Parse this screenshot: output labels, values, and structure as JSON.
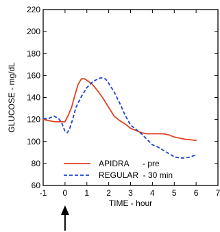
{
  "chart_data": {
    "type": "line",
    "xlabel": "TIME - hour",
    "ylabel": "GLUCOSE - mg/dL",
    "xlim": [
      -1,
      7
    ],
    "ylim": [
      60,
      220
    ],
    "x_ticks": [
      -1,
      0,
      1,
      2,
      3,
      4,
      5,
      6,
      7
    ],
    "y_ticks": [
      60,
      80,
      100,
      120,
      140,
      160,
      180,
      200,
      220
    ],
    "grid": false,
    "legend_position": "bottom-right",
    "series": [
      {
        "name": "APIDRA      - pre",
        "color": "#e0401e",
        "style": "solid",
        "points": [
          [
            -1.0,
            120
          ],
          [
            -0.75,
            119
          ],
          [
            -0.5,
            118
          ],
          [
            -0.25,
            118
          ],
          [
            0.0,
            118
          ],
          [
            0.15,
            124
          ],
          [
            0.3,
            131
          ],
          [
            0.45,
            142
          ],
          [
            0.6,
            152
          ],
          [
            0.75,
            157
          ],
          [
            0.9,
            157
          ],
          [
            1.05,
            155
          ],
          [
            1.25,
            152
          ],
          [
            1.5,
            146
          ],
          [
            1.75,
            139
          ],
          [
            2.0,
            131
          ],
          [
            2.25,
            123
          ],
          [
            2.5,
            119
          ],
          [
            2.75,
            116
          ],
          [
            3.0,
            112
          ],
          [
            3.25,
            110
          ],
          [
            3.5,
            108
          ],
          [
            3.75,
            107
          ],
          [
            4.0,
            107
          ],
          [
            4.25,
            107
          ],
          [
            4.5,
            107
          ],
          [
            4.75,
            106
          ],
          [
            5.0,
            104
          ],
          [
            5.5,
            102
          ],
          [
            6.0,
            101
          ]
        ]
      },
      {
        "name": "REGULAR  - 30 min",
        "color": "#1a3fd6",
        "style": "dashed",
        "points": [
          [
            -1.0,
            121
          ],
          [
            -0.75,
            121
          ],
          [
            -0.5,
            123
          ],
          [
            -0.3,
            121
          ],
          [
            -0.15,
            117
          ],
          [
            0.0,
            109
          ],
          [
            0.1,
            108
          ],
          [
            0.2,
            111
          ],
          [
            0.35,
            120
          ],
          [
            0.5,
            131
          ],
          [
            0.75,
            141
          ],
          [
            1.0,
            149
          ],
          [
            1.25,
            154
          ],
          [
            1.5,
            157
          ],
          [
            1.65,
            158
          ],
          [
            1.85,
            157
          ],
          [
            2.0,
            153
          ],
          [
            2.25,
            145
          ],
          [
            2.5,
            135
          ],
          [
            2.75,
            124
          ],
          [
            3.0,
            115
          ],
          [
            3.25,
            111
          ],
          [
            3.5,
            107
          ],
          [
            3.75,
            102
          ],
          [
            4.0,
            97
          ],
          [
            4.25,
            95
          ],
          [
            4.5,
            92
          ],
          [
            4.75,
            89
          ],
          [
            5.0,
            86
          ],
          [
            5.25,
            85
          ],
          [
            5.5,
            85
          ],
          [
            5.75,
            86
          ],
          [
            6.0,
            88
          ]
        ]
      }
    ],
    "annotations": [
      {
        "type": "arrow",
        "x": 0,
        "direction": "up",
        "below_axis": true
      }
    ]
  }
}
